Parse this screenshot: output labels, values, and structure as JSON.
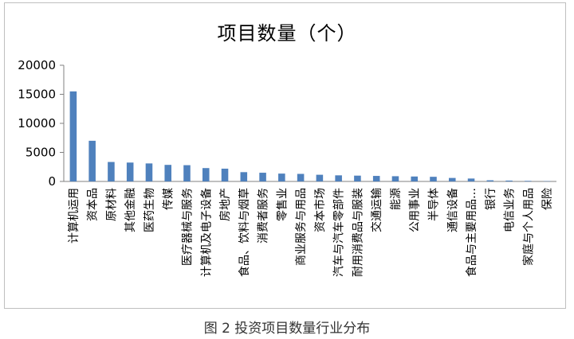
{
  "chart_data": {
    "type": "bar",
    "title": "项目数量（个）",
    "caption": "图 2  投资项目数量行业分布",
    "categories": [
      "计算机运用",
      "资本品",
      "原材料",
      "其他金融",
      "医药生物",
      "传媒",
      "医疗器械与服务",
      "计算机及电子设备",
      "房地产",
      "食品、饮料与烟草",
      "消费者服务",
      "零售业",
      "商业服务与用品",
      "资本市场",
      "汽车与汽车零部件",
      "耐用消费品与服装",
      "交通运输",
      "能源",
      "公用事业",
      "半导体",
      "通信设备",
      "食品与主要用品…",
      "银行",
      "电信业务",
      "家庭与个人用品",
      "保险"
    ],
    "values": [
      15500,
      7000,
      3350,
      3250,
      3100,
      2850,
      2800,
      2300,
      2200,
      1600,
      1500,
      1350,
      1300,
      1150,
      1050,
      1000,
      950,
      900,
      850,
      800,
      600,
      500,
      200,
      150,
      100,
      50
    ],
    "y_ticks": [
      "0",
      "5000",
      "10000",
      "15000",
      "20000"
    ],
    "ylim": [
      0,
      20000
    ],
    "bar_color": "#4f81bd",
    "legend": "none",
    "grid": false
  }
}
